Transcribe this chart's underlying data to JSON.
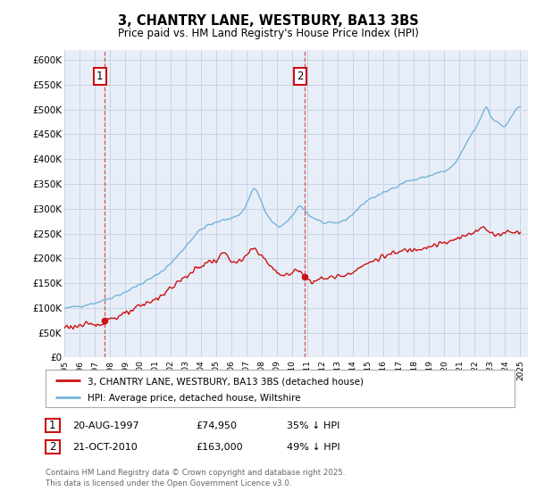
{
  "title": "3, CHANTRY LANE, WESTBURY, BA13 3BS",
  "subtitle": "Price paid vs. HM Land Registry's House Price Index (HPI)",
  "ylim": [
    0,
    620000
  ],
  "yticks": [
    0,
    50000,
    100000,
    150000,
    200000,
    250000,
    300000,
    350000,
    400000,
    450000,
    500000,
    550000,
    600000
  ],
  "hpi_color": "#74b4dc",
  "price_color": "#cc1111",
  "annotation_box_color": "#cc1111",
  "grid_color": "#c8d4e4",
  "background_color": "#e8eef8",
  "legend_label_red": "3, CHANTRY LANE, WESTBURY, BA13 3BS (detached house)",
  "legend_label_blue": "HPI: Average price, detached house, Wiltshire",
  "annotation1": {
    "label": "1",
    "date": "20-AUG-1997",
    "price": "£74,950",
    "hpi": "35% ↓ HPI"
  },
  "annotation2": {
    "label": "2",
    "date": "21-OCT-2010",
    "price": "£163,000",
    "hpi": "49% ↓ HPI"
  },
  "footnote": "Contains HM Land Registry data © Crown copyright and database right 2025.\nThis data is licensed under the Open Government Licence v3.0.",
  "sale1_year": 1997.622,
  "sale1_price": 74950,
  "sale2_year": 2010.789,
  "sale2_price": 163000
}
